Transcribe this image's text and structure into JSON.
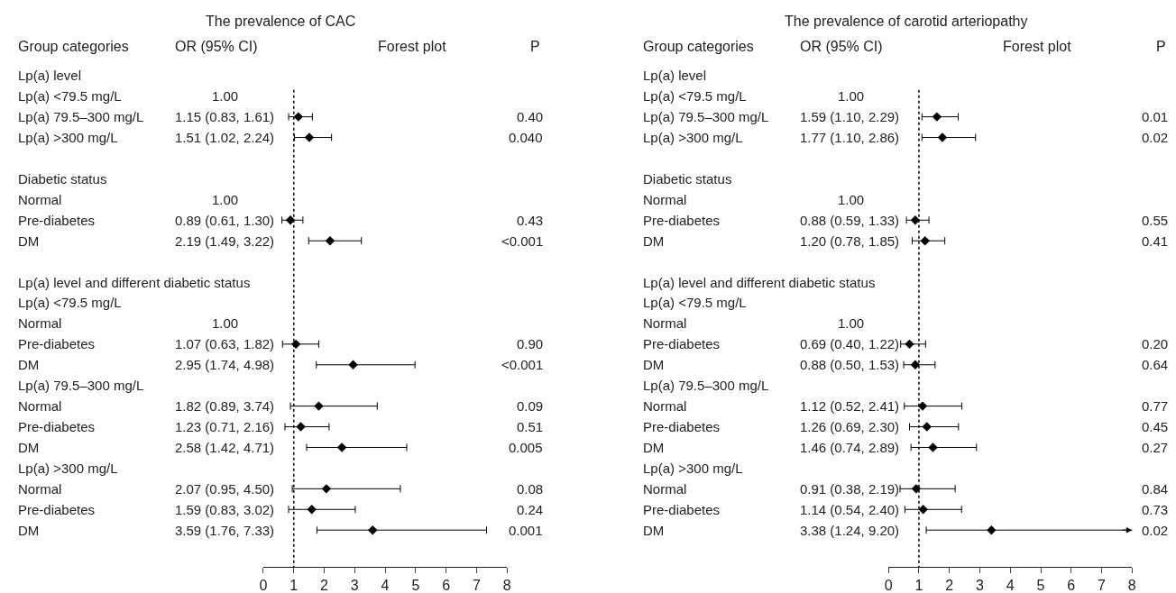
{
  "chart_data": [
    {
      "type": "scatter",
      "orientation": "horizontal",
      "title": "The prevalence of CAC",
      "categories": [
        "Lp(a) level",
        "Lp(a) <79.5 mg/L",
        "Lp(a) 79.5–300 mg/L",
        "Lp(a) >300 mg/L",
        null,
        "Diabetic status",
        "Normal",
        "Pre-diabetes",
        "DM",
        null,
        "Lp(a) level and different diabetic status",
        "Lp(a) <79.5 mg/L",
        "Normal",
        "Pre-diabetes",
        "DM",
        "Lp(a) 79.5–300 mg/L",
        "Normal",
        "Pre-diabetes",
        "DM",
        "Lp(a) >300 mg/L",
        "Normal",
        "Pre-diabetes",
        "DM"
      ],
      "values": [
        null,
        null,
        1.15,
        1.51,
        null,
        null,
        null,
        0.89,
        2.19,
        null,
        null,
        null,
        null,
        1.07,
        2.95,
        null,
        1.82,
        1.23,
        2.58,
        null,
        2.07,
        1.59,
        3.59
      ],
      "errors": [
        null,
        null,
        [
          0.83,
          1.61
        ],
        [
          1.02,
          2.24
        ],
        null,
        null,
        null,
        [
          0.61,
          1.3
        ],
        [
          1.49,
          3.22
        ],
        null,
        null,
        null,
        null,
        [
          0.63,
          1.82
        ],
        [
          1.74,
          4.98
        ],
        null,
        [
          0.89,
          3.74
        ],
        [
          0.71,
          2.16
        ],
        [
          1.42,
          4.71
        ],
        null,
        [
          0.95,
          4.5
        ],
        [
          0.83,
          3.02
        ],
        [
          1.76,
          7.33
        ]
      ],
      "value_labels": [
        null,
        "1.00",
        "1.15 (0.83, 1.61)",
        "1.51 (1.02, 2.24)",
        null,
        null,
        "1.00",
        "0.89 (0.61, 1.30)",
        "2.19 (1.49, 3.22)",
        null,
        null,
        null,
        "1.00",
        "1.07 (0.63, 1.82)",
        "2.95 (1.74, 4.98)",
        null,
        "1.82 (0.89, 3.74)",
        "1.23 (0.71, 2.16)",
        "2.58 (1.42, 4.71)",
        null,
        "2.07 (0.95, 4.50)",
        "1.59 (0.83, 3.02)",
        "3.59 (1.76, 7.33)"
      ],
      "color": "#000000",
      "marker": "diamond",
      "xlim": [
        0,
        8
      ],
      "xticks": [
        0,
        1,
        2,
        3,
        4,
        5,
        6,
        7,
        8
      ],
      "legend": false,
      "ref_lines": [
        {
          "axis": "x",
          "value": 1,
          "line_style": "dotted",
          "color": "#000000"
        }
      ],
      "annotations": [
        "Group categories",
        "OR (95% CI)",
        "Forest plot",
        "P",
        "0.40",
        "0.040",
        "0.43",
        "<0.001",
        "0.90",
        "<0.001",
        "0.09",
        "0.51",
        "0.005",
        "0.08",
        "0.24",
        "0.001"
      ]
    },
    {
      "type": "scatter",
      "orientation": "horizontal",
      "title": "The prevalence of carotid arteriopathy",
      "categories": [
        "Lp(a) level",
        "Lp(a) <79.5 mg/L",
        "Lp(a) 79.5–300 mg/L",
        "Lp(a) >300 mg/L",
        null,
        "Diabetic status",
        "Normal",
        "Pre-diabetes",
        "DM",
        null,
        "Lp(a) level and different diabetic status",
        "Lp(a) <79.5 mg/L",
        "Normal",
        "Pre-diabetes",
        "DM",
        "Lp(a) 79.5–300 mg/L",
        "Normal",
        "Pre-diabetes",
        "DM",
        "Lp(a) >300 mg/L",
        "Normal",
        "Pre-diabetes",
        "DM"
      ],
      "values": [
        null,
        null,
        1.59,
        1.77,
        null,
        null,
        null,
        0.88,
        1.2,
        null,
        null,
        null,
        null,
        0.69,
        0.88,
        null,
        1.12,
        1.26,
        1.46,
        null,
        0.91,
        1.14,
        3.38
      ],
      "errors": [
        null,
        null,
        [
          1.1,
          2.29
        ],
        [
          1.1,
          2.86
        ],
        null,
        null,
        null,
        [
          0.59,
          1.33
        ],
        [
          0.78,
          1.85
        ],
        null,
        null,
        null,
        null,
        [
          0.4,
          1.22
        ],
        [
          0.5,
          1.53
        ],
        null,
        [
          0.52,
          2.41
        ],
        [
          0.69,
          2.3
        ],
        [
          0.74,
          2.89
        ],
        null,
        [
          0.38,
          2.19
        ],
        [
          0.54,
          2.4
        ],
        [
          1.24,
          9.2
        ]
      ],
      "value_labels": [
        null,
        "1.00",
        "1.59 (1.10, 2.29)",
        "1.77 (1.10, 2.86)",
        null,
        null,
        "1.00",
        "0.88 (0.59, 1.33)",
        "1.20 (0.78, 1.85)",
        null,
        null,
        null,
        "1.00",
        "0.69 (0.40, 1.22)",
        "0.88 (0.50, 1.53)",
        null,
        "1.12 (0.52, 2.41)",
        "1.26 (0.69, 2.30)",
        "1.46 (0.74, 2.89)",
        null,
        "0.91 (0.38, 2.19)",
        "1.14 (0.54, 2.40)",
        "3.38 (1.24, 9.20)"
      ],
      "color": "#000000",
      "marker": "diamond",
      "xlim": [
        0,
        8
      ],
      "xticks": [
        0,
        1,
        2,
        3,
        4,
        5,
        6,
        7,
        8
      ],
      "legend": false,
      "ref_lines": [
        {
          "axis": "x",
          "value": 1,
          "line_style": "dotted",
          "color": "#000000"
        }
      ],
      "annotations": [
        "Group categories",
        "OR (95% CI)",
        "Forest plot",
        "P",
        "0.01",
        "0.02",
        "0.55",
        "0.41",
        "0.20",
        "0.64",
        "0.77",
        "0.45",
        "0.27",
        "0.84",
        "0.73",
        "0.02"
      ]
    }
  ]
}
